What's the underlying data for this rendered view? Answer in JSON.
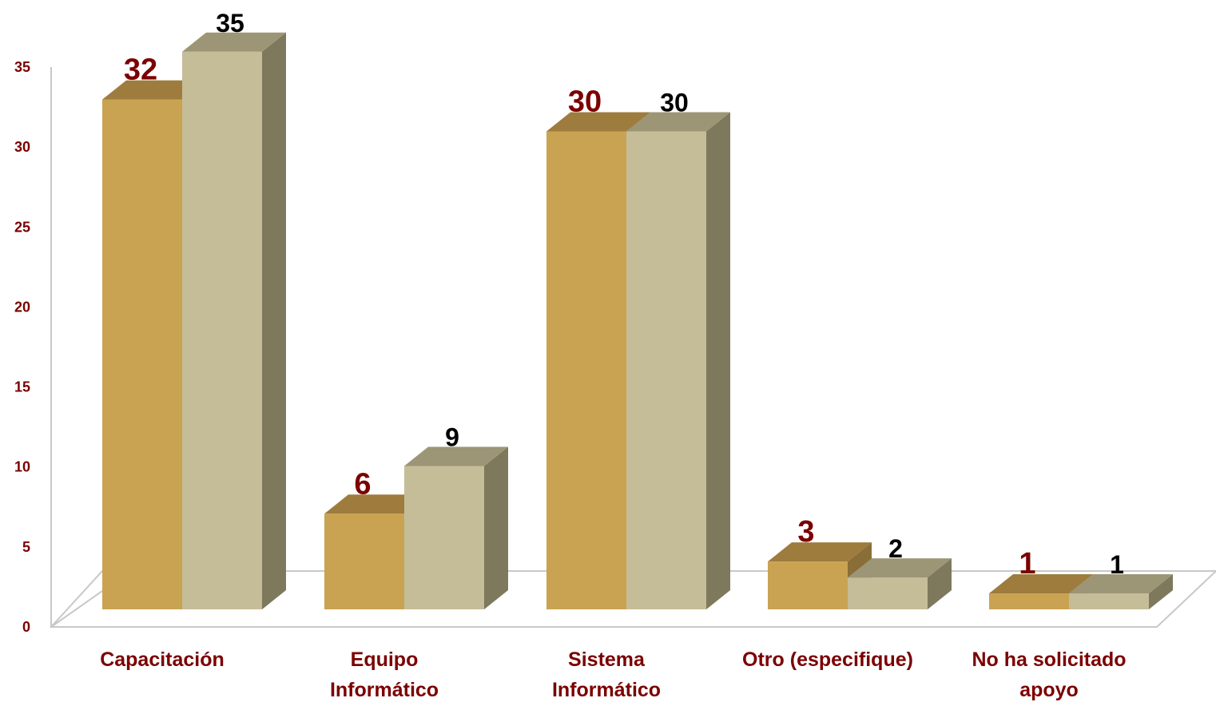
{
  "chart_data": {
    "type": "bar",
    "title": "",
    "xlabel": "",
    "ylabel": "",
    "ylim": [
      0,
      35
    ],
    "yticks": [
      0,
      5,
      10,
      15,
      20,
      25,
      30,
      35
    ],
    "categories": [
      [
        "Capacitación"
      ],
      [
        "Equipo",
        "Informático"
      ],
      [
        "Sistema",
        "Informático"
      ],
      [
        "Otro (especifique)"
      ],
      [
        "No ha solicitado",
        "apoyo"
      ]
    ],
    "series": [
      {
        "values": [
          32,
          6,
          30,
          3,
          1
        ],
        "color_front": "#C9A352",
        "color_top": "#9E7C3E",
        "label_color": "#7B0000"
      },
      {
        "values": [
          35,
          9,
          30,
          2,
          1
        ],
        "color_front": "#C5BD98",
        "color_top": "#9C9676",
        "color_side": "#7E795C",
        "label_color": "#000000"
      }
    ],
    "grid": false,
    "legend": "none",
    "style": "3d-column",
    "axis_label_color": "#7B0000"
  }
}
